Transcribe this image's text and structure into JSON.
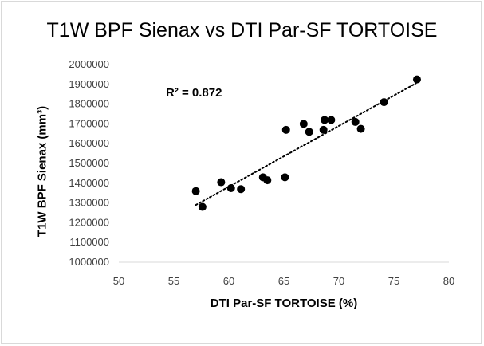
{
  "chart_data": {
    "type": "scatter",
    "title": "T1W BPF Sienax vs DTI Par-SF TORTOISE",
    "xlabel": "DTI Par-SF TORTOISE (%)",
    "ylabel": "T1W BPF Sienax (mm³)",
    "annotation": "R² = 0.872",
    "xlim": [
      50,
      80
    ],
    "ylim": [
      1000000,
      2000000
    ],
    "xticks": [
      50,
      55,
      60,
      65,
      70,
      75,
      80
    ],
    "yticks": [
      1000000,
      1100000,
      1200000,
      1300000,
      1400000,
      1500000,
      1600000,
      1700000,
      1800000,
      1900000,
      2000000
    ],
    "grid": false,
    "trendline": {
      "style": "dotted",
      "x": [
        57.0,
        77.0
      ],
      "y": [
        1290000,
        1905000
      ]
    },
    "marker_color": "#000000",
    "x": [
      57.0,
      57.6,
      59.3,
      60.2,
      61.1,
      63.1,
      63.5,
      65.1,
      65.2,
      66.8,
      67.3,
      68.6,
      68.7,
      69.3,
      71.5,
      72.0,
      74.1,
      77.1
    ],
    "y": [
      1360000,
      1280000,
      1405000,
      1375000,
      1370000,
      1430000,
      1415000,
      1430000,
      1670000,
      1700000,
      1660000,
      1670000,
      1720000,
      1720000,
      1710000,
      1675000,
      1810000,
      1925000
    ]
  }
}
